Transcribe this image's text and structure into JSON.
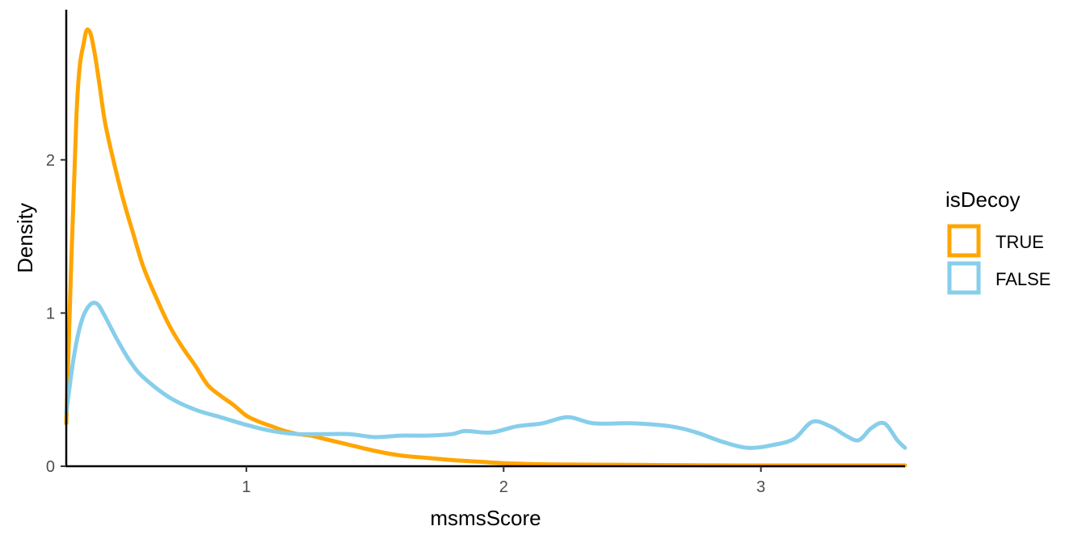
{
  "chart_data": {
    "type": "line",
    "subtype": "density",
    "xlabel": "msmsScore",
    "ylabel": "Density",
    "xlim": [
      0.3,
      3.56
    ],
    "ylim": [
      0,
      2.98
    ],
    "x_ticks": [
      1,
      2,
      3
    ],
    "x_tick_labels": [
      "1",
      "2",
      "3"
    ],
    "y_ticks": [
      0,
      1,
      2
    ],
    "y_tick_labels": [
      "0",
      "1",
      "2"
    ],
    "grid": false,
    "legend": {
      "title": "isDecoy",
      "position": "right",
      "entries": [
        "TRUE",
        "FALSE"
      ]
    },
    "series": [
      {
        "name": "TRUE",
        "color": "#FFA500",
        "x": [
          0.3,
          0.34,
          0.37,
          0.39,
          0.41,
          0.43,
          0.45,
          0.48,
          0.52,
          0.56,
          0.6,
          0.65,
          0.7,
          0.75,
          0.8,
          0.85,
          0.9,
          0.95,
          1.0,
          1.05,
          1.1,
          1.15,
          1.2,
          1.25,
          1.3,
          1.35,
          1.4,
          1.5,
          1.6,
          1.7,
          1.8,
          1.9,
          2.0,
          2.1,
          2.2,
          2.4,
          2.6,
          2.8,
          3.0,
          3.2,
          3.4,
          3.56
        ],
        "y": [
          0.28,
          2.3,
          2.78,
          2.84,
          2.7,
          2.48,
          2.25,
          2.02,
          1.75,
          1.52,
          1.3,
          1.1,
          0.92,
          0.78,
          0.66,
          0.53,
          0.46,
          0.4,
          0.33,
          0.29,
          0.26,
          0.23,
          0.21,
          0.2,
          0.18,
          0.16,
          0.14,
          0.1,
          0.07,
          0.055,
          0.04,
          0.03,
          0.02,
          0.015,
          0.012,
          0.01,
          0.008,
          0.006,
          0.005,
          0.004,
          0.003,
          0.003
        ]
      },
      {
        "name": "FALSE",
        "color": "#87CEEB",
        "x": [
          0.3,
          0.33,
          0.36,
          0.39,
          0.42,
          0.45,
          0.5,
          0.55,
          0.6,
          0.7,
          0.8,
          0.9,
          1.0,
          1.1,
          1.2,
          1.3,
          1.4,
          1.5,
          1.6,
          1.7,
          1.8,
          1.85,
          1.95,
          2.05,
          2.15,
          2.25,
          2.35,
          2.5,
          2.65,
          2.75,
          2.85,
          2.95,
          3.05,
          3.13,
          3.2,
          3.27,
          3.33,
          3.38,
          3.43,
          3.48,
          3.53,
          3.56
        ],
        "y": [
          0.35,
          0.72,
          0.95,
          1.05,
          1.06,
          0.98,
          0.82,
          0.68,
          0.58,
          0.45,
          0.37,
          0.32,
          0.27,
          0.23,
          0.21,
          0.21,
          0.21,
          0.19,
          0.2,
          0.2,
          0.21,
          0.23,
          0.22,
          0.26,
          0.28,
          0.32,
          0.28,
          0.28,
          0.26,
          0.22,
          0.16,
          0.12,
          0.14,
          0.18,
          0.29,
          0.26,
          0.2,
          0.17,
          0.25,
          0.28,
          0.17,
          0.12
        ]
      }
    ]
  }
}
